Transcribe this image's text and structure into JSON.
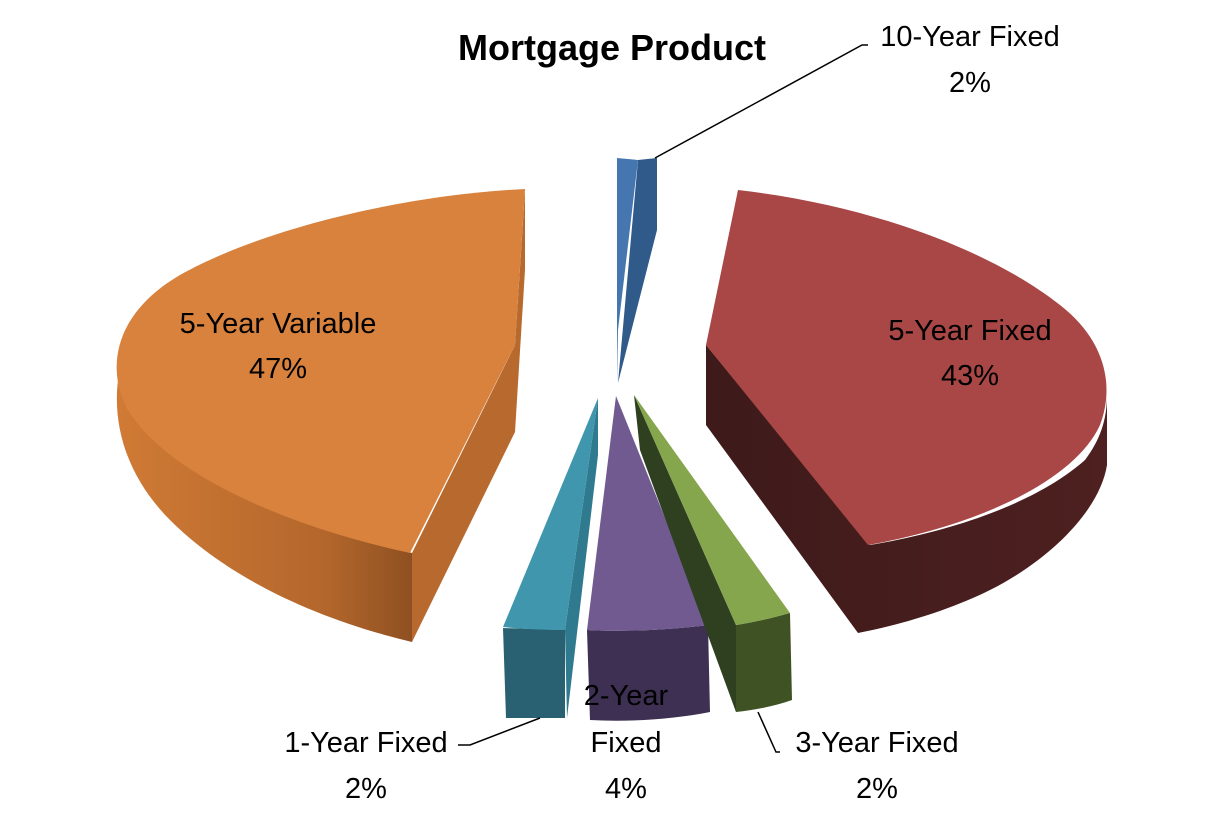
{
  "chart_data": {
    "type": "pie",
    "style": "3d-exploded",
    "title": "Mortgage Product",
    "slices": [
      {
        "name": "10-Year Fixed",
        "percent": "2%",
        "value": 2,
        "color": "#4576B0"
      },
      {
        "name": "5-Year Fixed",
        "percent": "43%",
        "value": 43,
        "color": "#A84745"
      },
      {
        "name": "3-Year Fixed",
        "percent": "2%",
        "value": 2,
        "color": "#86A64D"
      },
      {
        "name": "2-Year Fixed",
        "name_lines": [
          "2-Year",
          "Fixed"
        ],
        "percent": "4%",
        "value": 4,
        "color": "#715A90"
      },
      {
        "name": "1-Year Fixed",
        "percent": "2%",
        "value": 2,
        "color": "#4097AD"
      },
      {
        "name": "5-Year Variable",
        "percent": "47%",
        "value": 47,
        "color": "#D8823E"
      }
    ],
    "legend": "none"
  }
}
